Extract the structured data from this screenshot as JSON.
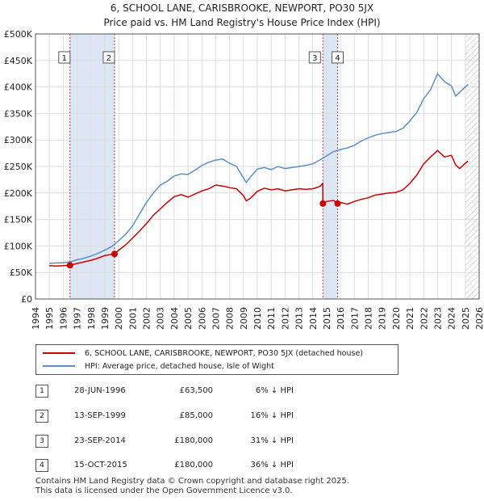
{
  "title": {
    "line1": "6, SCHOOL LANE, CARISBROOKE, NEWPORT, PO30 5JX",
    "line2": "Price paid vs. HM Land Registry's House Price Index (HPI)"
  },
  "colors": {
    "property": "#cc0000",
    "hpi": "#5a8fc8",
    "shade": "#dde6f5",
    "grid": "#dddddd"
  },
  "chart_data": {
    "type": "line",
    "title": "6, SCHOOL LANE, CARISBROOKE, NEWPORT, PO30 5JX — Price paid vs. HM Land Registry's House Price Index (HPI)",
    "xlim": [
      1994,
      2026
    ],
    "ylim": [
      0,
      500000
    ],
    "yticks": [
      0,
      50000,
      100000,
      150000,
      200000,
      250000,
      300000,
      350000,
      400000,
      450000,
      500000
    ],
    "ytick_labels": [
      "£0",
      "£50K",
      "£100K",
      "£150K",
      "£200K",
      "£250K",
      "£300K",
      "£350K",
      "£400K",
      "£450K",
      "£500K"
    ],
    "xticks": [
      1994,
      1995,
      1996,
      1997,
      1998,
      1999,
      2000,
      2001,
      2002,
      2003,
      2004,
      2005,
      2006,
      2007,
      2008,
      2009,
      2010,
      2011,
      2012,
      2013,
      2014,
      2015,
      2016,
      2017,
      2018,
      2019,
      2020,
      2021,
      2022,
      2023,
      2024,
      2025,
      2026
    ],
    "shaded_ranges": [
      [
        1996.49,
        1999.7
      ],
      [
        2014.73,
        2015.79
      ]
    ],
    "series": [
      {
        "name": "6, SCHOOL LANE, CARISBROOKE, NEWPORT, PO30 5JX (detached house)",
        "x": [
          1995.0,
          1995.5,
          1996.0,
          1996.49,
          1997.0,
          1997.5,
          1998.0,
          1998.5,
          1999.0,
          1999.7,
          2000.0,
          2000.5,
          2001.0,
          2001.5,
          2002.0,
          2002.5,
          2003.0,
          2003.5,
          2004.0,
          2004.5,
          2005.0,
          2005.5,
          2006.0,
          2006.5,
          2007.0,
          2007.5,
          2008.0,
          2008.5,
          2009.0,
          2009.2,
          2009.5,
          2010.0,
          2010.5,
          2011.0,
          2011.5,
          2012.0,
          2012.5,
          2013.0,
          2013.5,
          2014.0,
          2014.5,
          2014.72,
          2014.73,
          2015.0,
          2015.5,
          2015.79,
          2016.0,
          2016.5,
          2017.0,
          2017.5,
          2018.0,
          2018.5,
          2019.0,
          2019.5,
          2020.0,
          2020.5,
          2021.0,
          2021.5,
          2022.0,
          2022.5,
          2023.0,
          2023.5,
          2024.0,
          2024.3,
          2024.6,
          2025.0,
          2025.2
        ],
        "values": [
          63000,
          62000,
          63000,
          63500,
          67000,
          70000,
          73000,
          77000,
          82000,
          85000,
          92000,
          102000,
          115000,
          128000,
          142000,
          158000,
          170000,
          182000,
          193000,
          197000,
          192000,
          198000,
          204000,
          208000,
          215000,
          213000,
          210000,
          208000,
          195000,
          185000,
          190000,
          203000,
          209000,
          206000,
          208000,
          204000,
          206000,
          208000,
          207000,
          208000,
          212000,
          218000,
          180000,
          184000,
          186000,
          180000,
          182000,
          179000,
          184000,
          188000,
          191000,
          196000,
          198000,
          200000,
          201000,
          206000,
          218000,
          234000,
          255000,
          268000,
          280000,
          268000,
          271000,
          253000,
          246000,
          256000,
          260000
        ]
      },
      {
        "name": "HPI: Average price, detached house, Isle of Wight",
        "x": [
          1995.0,
          1995.5,
          1996.0,
          1996.5,
          1997.0,
          1997.5,
          1998.0,
          1998.5,
          1999.0,
          1999.5,
          2000.0,
          2000.5,
          2001.0,
          2001.5,
          2002.0,
          2002.5,
          2003.0,
          2003.5,
          2004.0,
          2004.5,
          2005.0,
          2005.5,
          2006.0,
          2006.5,
          2007.0,
          2007.5,
          2008.0,
          2008.5,
          2009.0,
          2009.2,
          2009.5,
          2010.0,
          2010.5,
          2011.0,
          2011.5,
          2012.0,
          2012.5,
          2013.0,
          2013.5,
          2014.0,
          2014.5,
          2015.0,
          2015.5,
          2016.0,
          2016.5,
          2017.0,
          2017.5,
          2018.0,
          2018.5,
          2019.0,
          2019.5,
          2020.0,
          2020.5,
          2021.0,
          2021.5,
          2022.0,
          2022.5,
          2023.0,
          2023.5,
          2024.0,
          2024.3,
          2024.6,
          2025.0,
          2025.2
        ],
        "values": [
          67000,
          68000,
          68500,
          70000,
          74000,
          77000,
          81000,
          86000,
          92000,
          99000,
          110000,
          122000,
          138000,
          160000,
          182000,
          200000,
          215000,
          222000,
          232000,
          236000,
          235000,
          243000,
          252000,
          258000,
          262000,
          264000,
          256000,
          250000,
          228000,
          220000,
          230000,
          245000,
          248000,
          244000,
          250000,
          246000,
          248000,
          250000,
          252000,
          255000,
          262000,
          270000,
          278000,
          282000,
          285000,
          290000,
          298000,
          304000,
          309000,
          312000,
          314000,
          316000,
          322000,
          336000,
          352000,
          378000,
          395000,
          425000,
          410000,
          402000,
          383000,
          390000,
          400000,
          405000
        ]
      }
    ],
    "sales": [
      {
        "label": "1",
        "x": 1996.49,
        "value": 63500
      },
      {
        "label": "2",
        "x": 1999.7,
        "value": 85000
      },
      {
        "label": "3",
        "x": 2014.73,
        "value": 180000
      },
      {
        "label": "4",
        "x": 2015.79,
        "value": 180000
      }
    ]
  },
  "legend": {
    "property": "6, SCHOOL LANE, CARISBROOKE, NEWPORT, PO30 5JX (detached house)",
    "hpi": "HPI: Average price, detached house, Isle of Wight"
  },
  "transactions": [
    {
      "num": "1",
      "date": "28-JUN-1996",
      "price": "£63,500",
      "rel": "6% ↓ HPI"
    },
    {
      "num": "2",
      "date": "13-SEP-1999",
      "price": "£85,000",
      "rel": "16% ↓ HPI"
    },
    {
      "num": "3",
      "date": "23-SEP-2014",
      "price": "£180,000",
      "rel": "31% ↓ HPI"
    },
    {
      "num": "4",
      "date": "15-OCT-2015",
      "price": "£180,000",
      "rel": "36% ↓ HPI"
    }
  ],
  "footer": {
    "line1": "Contains HM Land Registry data © Crown copyright and database right 2025.",
    "line2": "This data is licensed under the Open Government Licence v3.0."
  }
}
